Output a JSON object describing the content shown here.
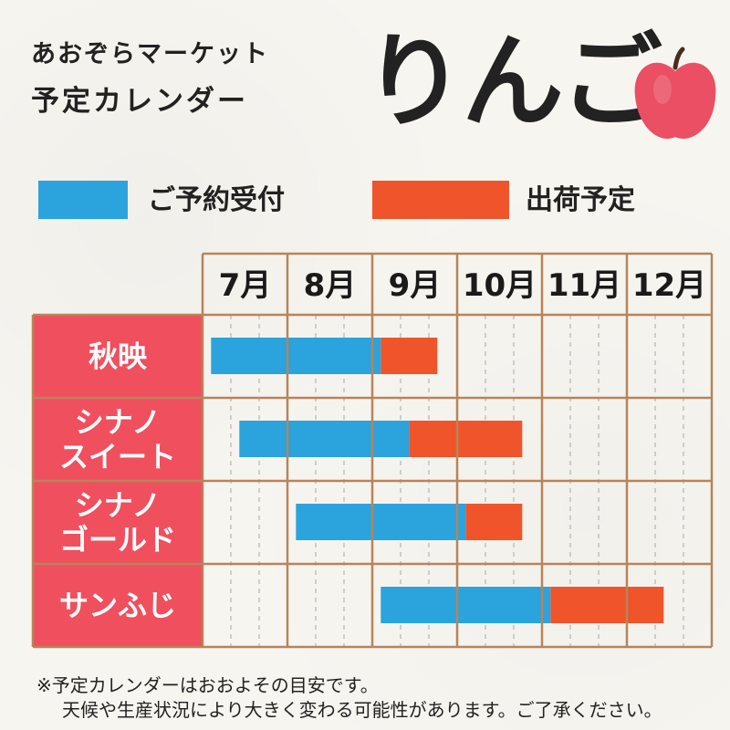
{
  "header": {
    "subtitle_line1": "あおぞらマーケット",
    "subtitle_line2": "予定カレンダー",
    "title": "りんご"
  },
  "legend": [
    {
      "label": "ご予約受付",
      "color": "#2ba3dd"
    },
    {
      "label": "出荷予定",
      "color": "#f0542a"
    }
  ],
  "colors": {
    "row_header": "#f04f5e",
    "grid_line": "#b8845a",
    "dashed_line": "#b9b9b9",
    "reserve": "#2ba3dd",
    "ship": "#f0542a"
  },
  "chart_data": {
    "type": "gantt",
    "title": "りんご",
    "columns": [
      "7月",
      "8月",
      "9月",
      "10月",
      "11月",
      "12月"
    ],
    "subdivisions_per_month": 3,
    "units": "month-thirds from start of July (0 = early July, 18 = end of December)",
    "series": [
      {
        "name": "ご予約受付",
        "color": "#2ba3dd"
      },
      {
        "name": "出荷予定",
        "color": "#f0542a"
      }
    ],
    "rows": [
      {
        "label": "秋映",
        "reserve": [
          0.3,
          6.3
        ],
        "ship": [
          6.3,
          8.3
        ]
      },
      {
        "label": "シナノ\nスイート",
        "reserve": [
          1.3,
          7.3
        ],
        "ship": [
          7.3,
          11.3
        ]
      },
      {
        "label": "シナノ\nゴールド",
        "reserve": [
          3.3,
          9.3
        ],
        "ship": [
          9.3,
          11.3
        ]
      },
      {
        "label": "サンふじ",
        "reserve": [
          6.3,
          12.3
        ],
        "ship": [
          12.3,
          16.3
        ]
      }
    ]
  },
  "footnote": {
    "line1": "※予定カレンダーはおおよその目安です。",
    "line2": "天候や生産状況により大きく変わる可能性があります。ご了承ください。"
  }
}
